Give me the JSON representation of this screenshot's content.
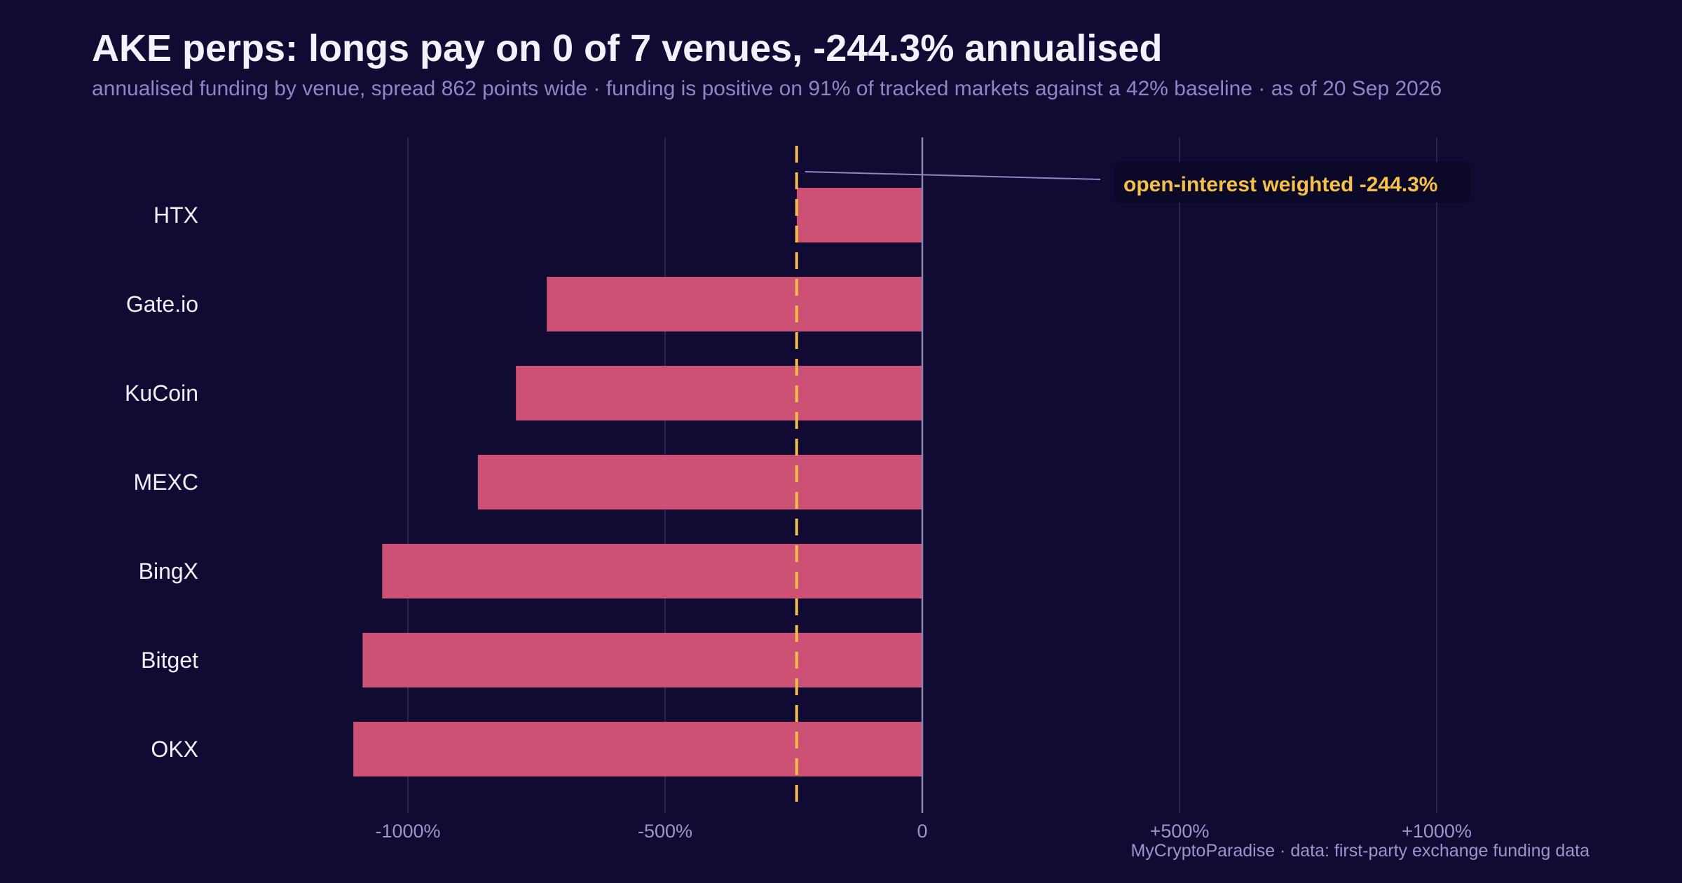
{
  "title": "AKE perps: longs pay on 0 of 7 venues, -244.3% annualised",
  "subtitle": "annualised funding by venue, spread 862 points wide · funding is positive on 91% of tracked markets against a 42% baseline · as of 20 Sep 2026",
  "footer": "MyCryptoParadise  ·  data: first-party exchange funding data",
  "colors": {
    "background": "#110b33",
    "bar_negative": "#cc5174",
    "reference_line": "#f5c04a",
    "zero_line": "#8e87b3",
    "grid": "#2a2450",
    "annotation_box": "#0c0828",
    "annotation_leader": "#8f85c8"
  },
  "chart_data": {
    "type": "bar",
    "orientation": "horizontal",
    "categories": [
      "HTX",
      "Gate.io",
      "KuCoin",
      "MEXC",
      "BingX",
      "Bitget",
      "OKX"
    ],
    "values": [
      -244,
      -730,
      -790,
      -864,
      -1050,
      -1088,
      -1106
    ],
    "xlim": [
      -1000,
      1000
    ],
    "x_ticks": [
      -1000,
      -500,
      0,
      500,
      1000
    ],
    "x_tick_labels": [
      "-1000%",
      "-500%",
      "0",
      "+500%",
      "+1000%"
    ],
    "xlabel": "",
    "ylabel": "",
    "grid": "vertical",
    "legend": "none",
    "reference_line": {
      "value": -244.3,
      "style": "dashed",
      "label": "open-interest weighted",
      "value_label": "-244.3%"
    }
  }
}
